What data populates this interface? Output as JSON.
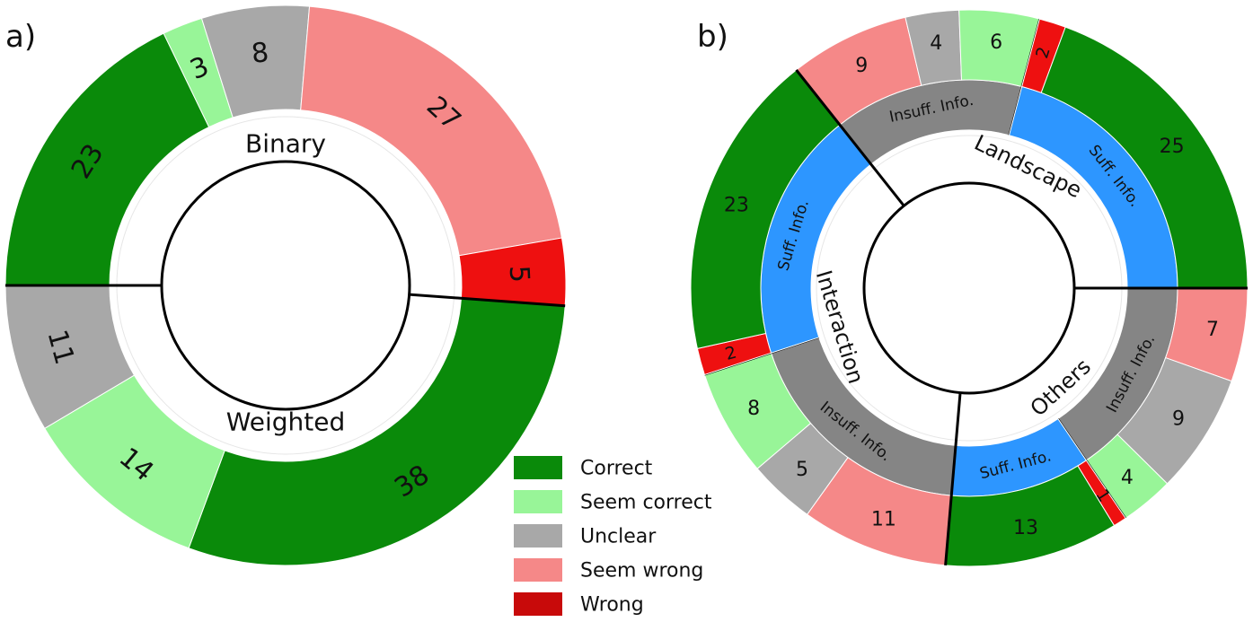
{
  "colors": {
    "correct": "#0a8a0a",
    "seem_correct": "#98f598",
    "unclear": "#a8a8a8",
    "seem_wrong": "#f58888",
    "wrong": "#ee1010",
    "suff": "#2d96ff",
    "insuff": "#858585"
  },
  "legend": [
    {
      "label": "Correct",
      "color": "#0a8a0a"
    },
    {
      "label": "Seem correct",
      "color": "#98f598"
    },
    {
      "label": "Unclear",
      "color": "#a8a8a8"
    },
    {
      "label": "Seem wrong",
      "color": "#f58888"
    },
    {
      "label": "Wrong",
      "color": "#c80a0a"
    }
  ],
  "chart_data": [
    {
      "type": "donut",
      "panel_label": "a)",
      "groups": [
        {
          "name": "Binary",
          "categories": [
            "Correct",
            "Seem correct",
            "Unclear"
          ],
          "values": [
            38,
            14,
            11
          ]
        },
        {
          "name": "Weighted",
          "categories": [
            "Correct",
            "Seem correct",
            "Unclear",
            "Seem wrong",
            "Wrong"
          ],
          "values": [
            23,
            3,
            8,
            27,
            5
          ]
        }
      ]
    },
    {
      "type": "nested-donut",
      "panel_label": "b)",
      "groups": [
        {
          "name": "Landscape",
          "subgroups": [
            {
              "name": "Suff. Info.",
              "categories": [
                "Wrong",
                "Correct"
              ],
              "values": [
                2,
                25
              ]
            },
            {
              "name": "Insuff. Info.",
              "categories": [
                "Seem correct",
                "Unclear",
                "Seem wrong"
              ],
              "values": [
                6,
                4,
                9
              ]
            }
          ]
        },
        {
          "name": "Interaction",
          "subgroups": [
            {
              "name": "Suff. Info.",
              "categories": [
                "Correct",
                "Wrong"
              ],
              "values": [
                23,
                2
              ]
            },
            {
              "name": "Insuff. Info.",
              "categories": [
                "Seem correct",
                "Unclear",
                "Seem wrong"
              ],
              "values": [
                8,
                5,
                11
              ]
            }
          ]
        },
        {
          "name": "Others",
          "subgroups": [
            {
              "name": "Suff. Info.",
              "categories": [
                "Correct",
                "Wrong"
              ],
              "values": [
                13,
                1
              ]
            },
            {
              "name": "Insuff. Info.",
              "categories": [
                "Seem correct",
                "Unclear",
                "Seem wrong"
              ],
              "values": [
                4,
                9,
                7
              ]
            }
          ]
        }
      ]
    }
  ]
}
